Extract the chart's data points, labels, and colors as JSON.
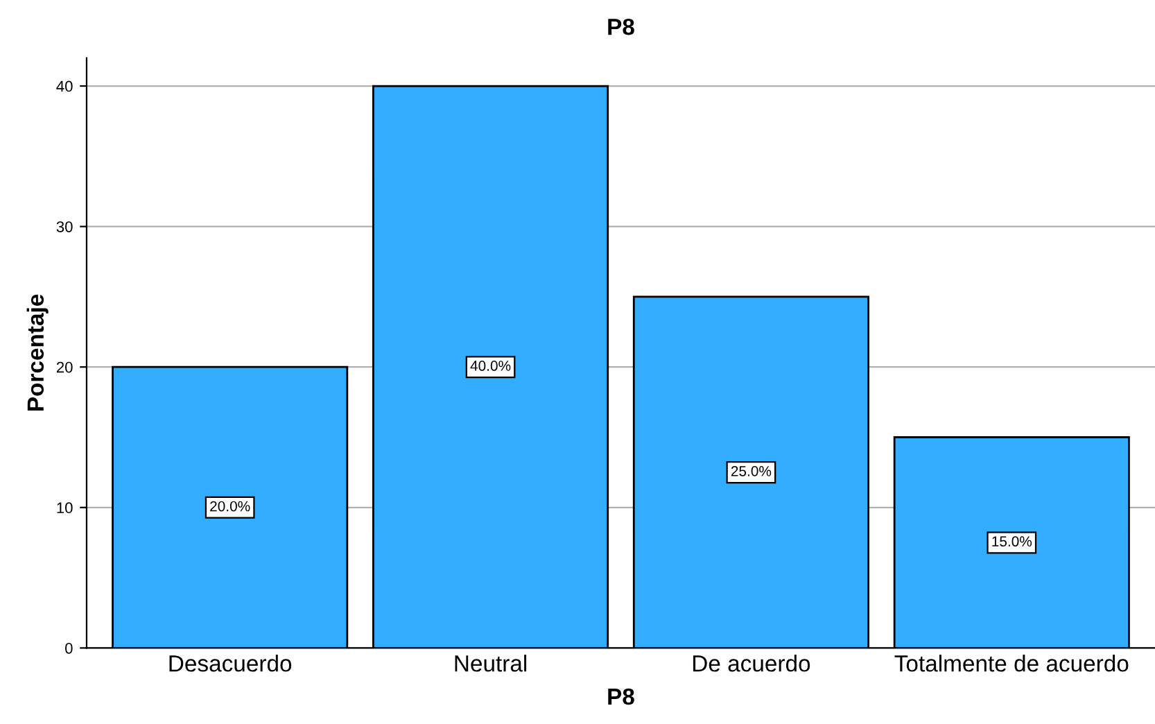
{
  "chart_data": {
    "type": "bar",
    "title": "P8",
    "xlabel": "P8",
    "ylabel": "Porcentaje",
    "categories": [
      "Desacuerdo",
      "Neutral",
      "De acuerdo",
      "Totalmente de acuerdo"
    ],
    "values": [
      20,
      40,
      25,
      15
    ],
    "value_labels": [
      "20.0%",
      "40.0%",
      "25.0%",
      "15.0%"
    ],
    "color": "#33adff",
    "ylim": [
      0,
      42
    ],
    "yticks": [
      0,
      10,
      20,
      30,
      40
    ],
    "grid": "y",
    "legend": false
  }
}
